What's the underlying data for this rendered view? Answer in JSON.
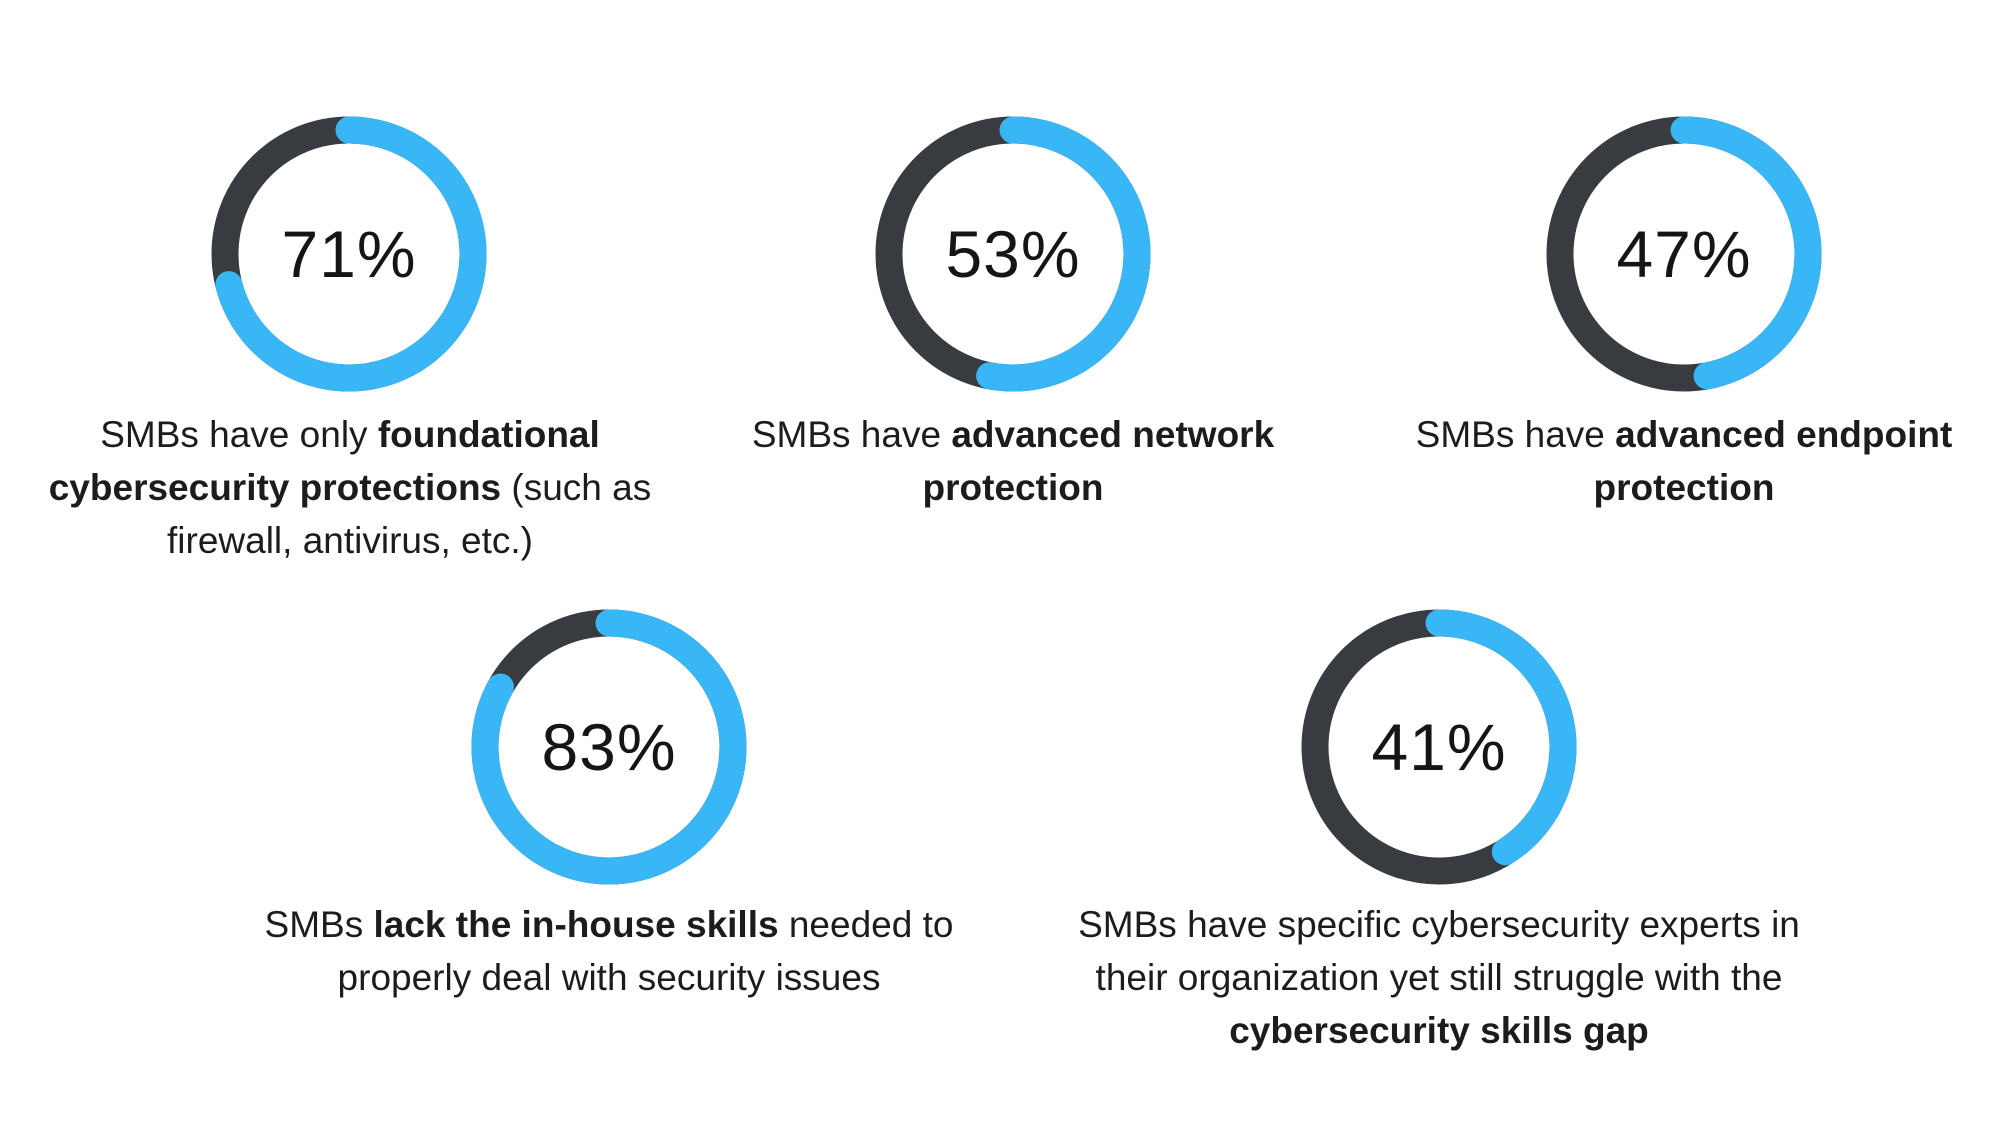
{
  "colors": {
    "filled": "#38b6f5",
    "track": "#383b3f",
    "text": "#1c1c1c"
  },
  "chart_data": [
    {
      "type": "donut",
      "value": 71,
      "label": "71%",
      "caption": [
        {
          "text": "SMBs have only ",
          "bold": false
        },
        {
          "text": "foundational cybersecurity protections",
          "bold": true
        },
        {
          "text": " (such as firewall, antivirus, etc.)",
          "bold": false
        }
      ]
    },
    {
      "type": "donut",
      "value": 53,
      "label": "53%",
      "caption": [
        {
          "text": "SMBs have ",
          "bold": false
        },
        {
          "text": "advanced network protection",
          "bold": true
        }
      ]
    },
    {
      "type": "donut",
      "value": 47,
      "label": "47%",
      "caption": [
        {
          "text": "SMBs have ",
          "bold": false
        },
        {
          "text": "advanced endpoint protection",
          "bold": true
        }
      ]
    },
    {
      "type": "donut",
      "value": 83,
      "label": "83%",
      "caption": [
        {
          "text": "SMBs ",
          "bold": false
        },
        {
          "text": "lack the in-house skills",
          "bold": true
        },
        {
          "text": " needed to properly deal with security issues",
          "bold": false
        }
      ]
    },
    {
      "type": "donut",
      "value": 41,
      "label": "41%",
      "caption": [
        {
          "text": "SMBs have specific cybersecurity experts in their organization yet still struggle with the ",
          "bold": false
        },
        {
          "text": "cybersecurity skills gap",
          "bold": true
        }
      ]
    }
  ]
}
